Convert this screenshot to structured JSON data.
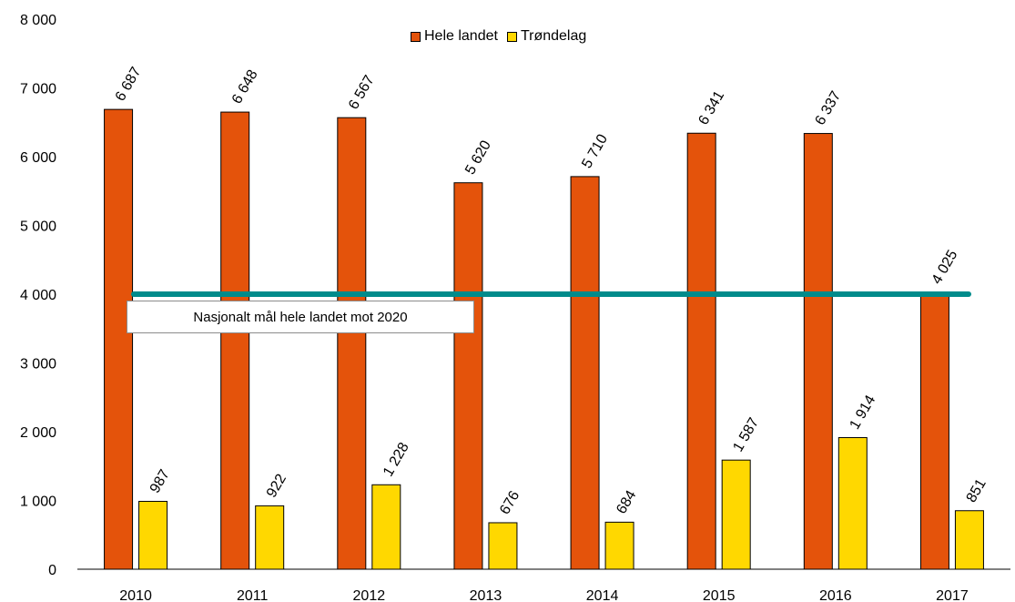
{
  "chart_data": {
    "type": "bar",
    "categories": [
      "2010",
      "2011",
      "2012",
      "2013",
      "2014",
      "2015",
      "2016",
      "2017"
    ],
    "series": [
      {
        "name": "Hele landet",
        "values": [
          6687,
          6648,
          6567,
          5620,
          5710,
          6341,
          6337,
          4025
        ],
        "labels": [
          "6 687",
          "6 648",
          "6 567",
          "5 620",
          "5 710",
          "6 341",
          "6 337",
          "4 025"
        ],
        "color": "#E4530B"
      },
      {
        "name": "Trøndelag",
        "values": [
          987,
          922,
          1228,
          676,
          684,
          1587,
          1914,
          851
        ],
        "labels": [
          "987",
          "922",
          "1 228",
          "676",
          "684",
          "1 587",
          "1 914",
          "851"
        ],
        "color": "#FFD800"
      }
    ],
    "ylim": [
      0,
      8000
    ],
    "yticks": [
      0,
      1000,
      2000,
      3000,
      4000,
      5000,
      6000,
      7000,
      8000
    ],
    "ytick_labels": [
      "0",
      "1 000",
      "2 000",
      "3 000",
      "4 000",
      "5 000",
      "6 000",
      "7 000",
      "8 000"
    ],
    "legend_position": "top-center",
    "grid": false,
    "reference_line": {
      "value": 4000,
      "color": "#008B8B",
      "label": "Nasjonalt mål hele landet mot 2020"
    }
  }
}
